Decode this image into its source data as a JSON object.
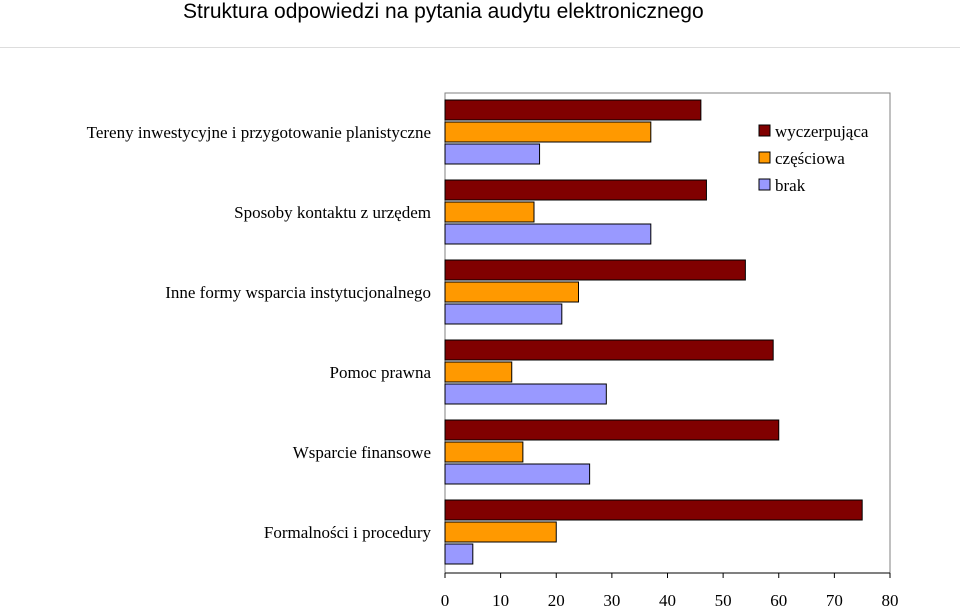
{
  "page": {
    "title": "Struktura odpowiedzi na pytania audytu elektronicznego"
  },
  "colors": {
    "wyczerpujaca": "#800000",
    "czesciowa": "#ff9900",
    "brak": "#9999ff",
    "plot_border": "#808080"
  },
  "chart_data": {
    "type": "bar",
    "orientation": "horizontal",
    "title": "Struktura odpowiedzi na pytania audytu elektronicznego",
    "categories": [
      "Tereny inwestycyjne i przygotowanie planistyczne",
      "Sposoby kontaktu z urzędem",
      "Inne formy wsparcia instytucjonalnego",
      "Pomoc prawna",
      "Wsparcie finansowe",
      "Formalności i procedury"
    ],
    "series": [
      {
        "name": "wyczerpująca",
        "values": [
          46,
          47,
          54,
          59,
          60,
          75
        ]
      },
      {
        "name": "częściowa",
        "values": [
          37,
          16,
          24,
          12,
          14,
          20
        ]
      },
      {
        "name": "brak",
        "values": [
          17,
          37,
          21,
          29,
          26,
          5
        ]
      }
    ],
    "xlim": [
      0,
      80
    ],
    "xticks": [
      "0",
      "10",
      "20",
      "30",
      "40",
      "50",
      "60",
      "70",
      "80"
    ],
    "xlabel": "",
    "ylabel": "",
    "grid": false,
    "legend_position": "top-right"
  }
}
